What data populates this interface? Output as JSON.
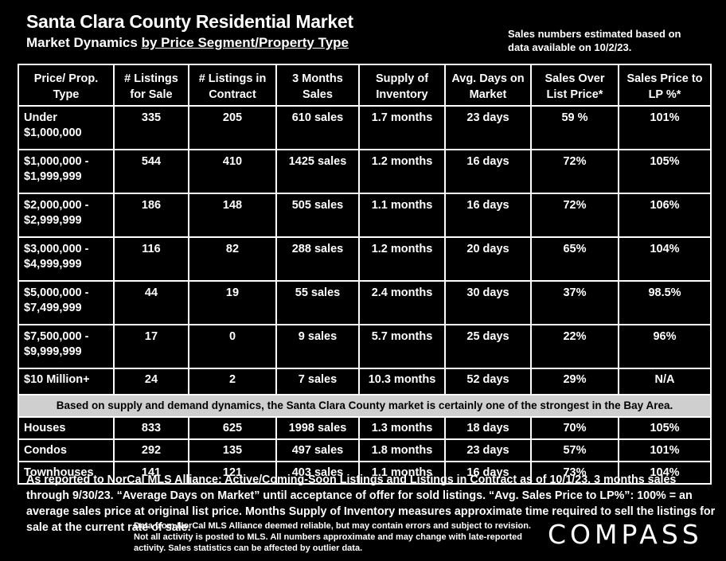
{
  "header": {
    "title": "Santa Clara County Residential Market",
    "subtitle_plain": "Market Dynamics ",
    "subtitle_underlined": "by Price Segment/Property Type",
    "note": "Sales numbers estimated based on data available on 10/2/23."
  },
  "table": {
    "columns": [
      "Price/ Prop. Type",
      "# Listings for Sale",
      "# Listings in Contract",
      "3 Months Sales",
      "Supply of Inventory",
      "Avg. Days on Market",
      "Sales Over List Price*",
      "Sales Price to LP %*"
    ],
    "price_rows": [
      [
        "Under $1,000,000",
        "335",
        "205",
        "610 sales",
        "1.7 months",
        "23 days",
        "59 %",
        "101%"
      ],
      [
        "$1,000,000 - $1,999,999",
        "544",
        "410",
        "1425 sales",
        "1.2 months",
        "16 days",
        "72%",
        "105%"
      ],
      [
        "$2,000,000 - $2,999,999",
        "186",
        "148",
        "505 sales",
        "1.1 months",
        "16 days",
        "72%",
        "106%"
      ],
      [
        "$3,000,000 - $4,999,999",
        "116",
        "82",
        "288 sales",
        "1.2 months",
        "20 days",
        "65%",
        "104%"
      ],
      [
        "$5,000,000 - $7,499,999",
        "44",
        "19",
        "55 sales",
        "2.4 months",
        "30 days",
        "37%",
        "98.5%"
      ],
      [
        "$7,500,000 - $9,999,999",
        "17",
        "0",
        "9 sales",
        "5.7 months",
        "25 days",
        "22%",
        "96%"
      ],
      [
        "$10 Million+",
        "24",
        "2",
        "7 sales",
        "10.3 months",
        "52 days",
        "29%",
        "N/A"
      ]
    ],
    "banner": "Based on supply and demand dynamics, the Santa Clara County market is certainly one of the strongest in the Bay Area.",
    "type_rows": [
      [
        "Houses",
        "833",
        "625",
        "1998 sales",
        "1.3 months",
        "18 days",
        "70%",
        "105%"
      ],
      [
        "Condos",
        "292",
        "135",
        "497 sales",
        "1.8 months",
        "23 days",
        "57%",
        "101%"
      ],
      [
        "Townhouses",
        "141",
        "121",
        "403 sales",
        "1.1 months",
        "16 days",
        "73%",
        "104%"
      ]
    ]
  },
  "footer": {
    "main": "As reported to NorCal MLS Alliance: Active/Coming-Soon Listings and Listings in Contract as of 10/1/23. 3 months sales through 9/30/23. “Average Days on Market” until acceptance of offer for sold listings. “Avg. Sales Price to LP%”: 100% = an average sales price at original list price. Months Supply of Inventory measures approximate time required to sell the listings for sale at the current rate of sale.",
    "disclaimer": "Data from NorCal MLS Alliance deemed reliable, but may contain errors and subject to revision. Not all activity is posted to MLS. All numbers approximate and may change with late-reported activity. Sales statistics can be affected by outlier data.",
    "logo": "COMPASS"
  }
}
